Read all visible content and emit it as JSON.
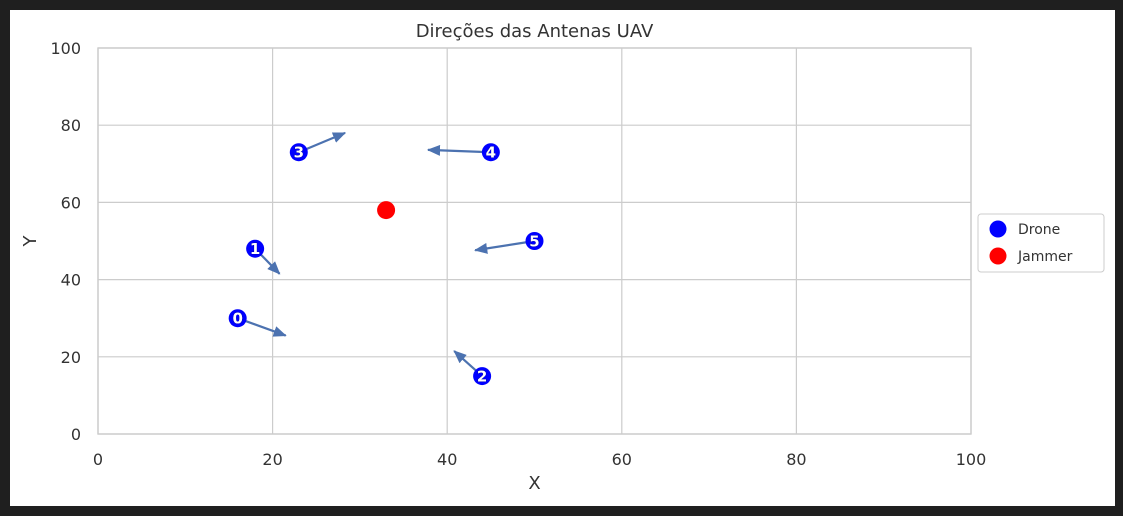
{
  "chart_data": {
    "type": "scatter",
    "title": "Direções das Antenas UAV",
    "xlabel": "X",
    "ylabel": "Y",
    "xlim": [
      0,
      100
    ],
    "ylim": [
      0,
      100
    ],
    "xticks": [
      0,
      20,
      40,
      60,
      80,
      100
    ],
    "yticks": [
      0,
      20,
      40,
      60,
      80,
      100
    ],
    "grid": true,
    "legend_position": "right",
    "series": [
      {
        "name": "Drone",
        "color": "#0000ff",
        "points": [
          {
            "label": "0",
            "x": 16,
            "y": 30,
            "arrow_dx": 5.5,
            "arrow_dy": -4.5
          },
          {
            "label": "1",
            "x": 18,
            "y": 48,
            "arrow_dx": 2.8,
            "arrow_dy": -6.5
          },
          {
            "label": "2",
            "x": 44,
            "y": 15,
            "arrow_dx": -3.2,
            "arrow_dy": 6.5
          },
          {
            "label": "3",
            "x": 23,
            "y": 73,
            "arrow_dx": 5.3,
            "arrow_dy": 5.0
          },
          {
            "label": "4",
            "x": 45,
            "y": 73,
            "arrow_dx": -7.2,
            "arrow_dy": 0.6
          },
          {
            "label": "5",
            "x": 50,
            "y": 50,
            "arrow_dx": -6.8,
            "arrow_dy": -2.4
          }
        ]
      },
      {
        "name": "Jammer",
        "color": "#ff0000",
        "points": [
          {
            "x": 33,
            "y": 58
          }
        ]
      }
    ],
    "arrow_color": "#4c72b0",
    "grid_color": "#cccccc",
    "text_color": "#333333"
  }
}
